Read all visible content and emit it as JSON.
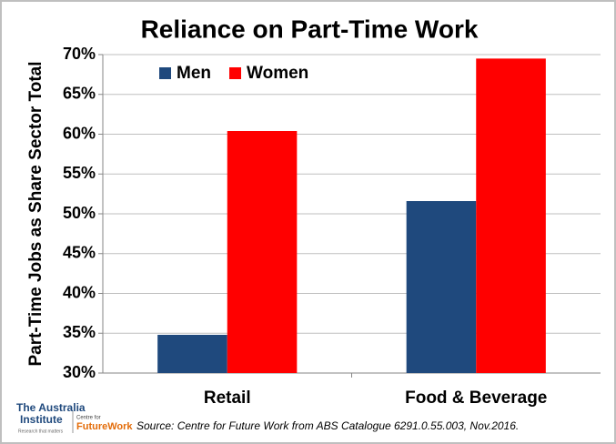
{
  "chart_data": {
    "type": "bar",
    "title": "Reliance on Part-Time Work",
    "y_label": "Part-Time Jobs as Share Sector Total",
    "categories": [
      "Retail",
      "Food & Beverage"
    ],
    "series": [
      {
        "name": "Men",
        "color": "#1f497d",
        "values": [
          34.8,
          51.6
        ]
      },
      {
        "name": "Women",
        "color": "#ff0000",
        "values": [
          60.4,
          69.5
        ]
      }
    ],
    "ylim": [
      30,
      70
    ],
    "yticks": [
      {
        "value": 30,
        "label": "30%"
      },
      {
        "value": 35,
        "label": "35%"
      },
      {
        "value": 40,
        "label": "40%"
      },
      {
        "value": 45,
        "label": "45%"
      },
      {
        "value": 50,
        "label": "50%"
      },
      {
        "value": 55,
        "label": "55%"
      },
      {
        "value": 60,
        "label": "60%"
      },
      {
        "value": 65,
        "label": "65%"
      },
      {
        "value": 70,
        "label": "70%"
      }
    ],
    "grid": true,
    "legend": "top-left",
    "source": "Source: Centre for Future Work from ABS Catalogue 6291.0.55.003,  Nov.2016."
  },
  "logo": {
    "org_top": "The Australia",
    "org_bottom": "Institute",
    "tagline": "Research that matters",
    "partner_prefix": "Centre for",
    "partner": "FutureWork"
  }
}
